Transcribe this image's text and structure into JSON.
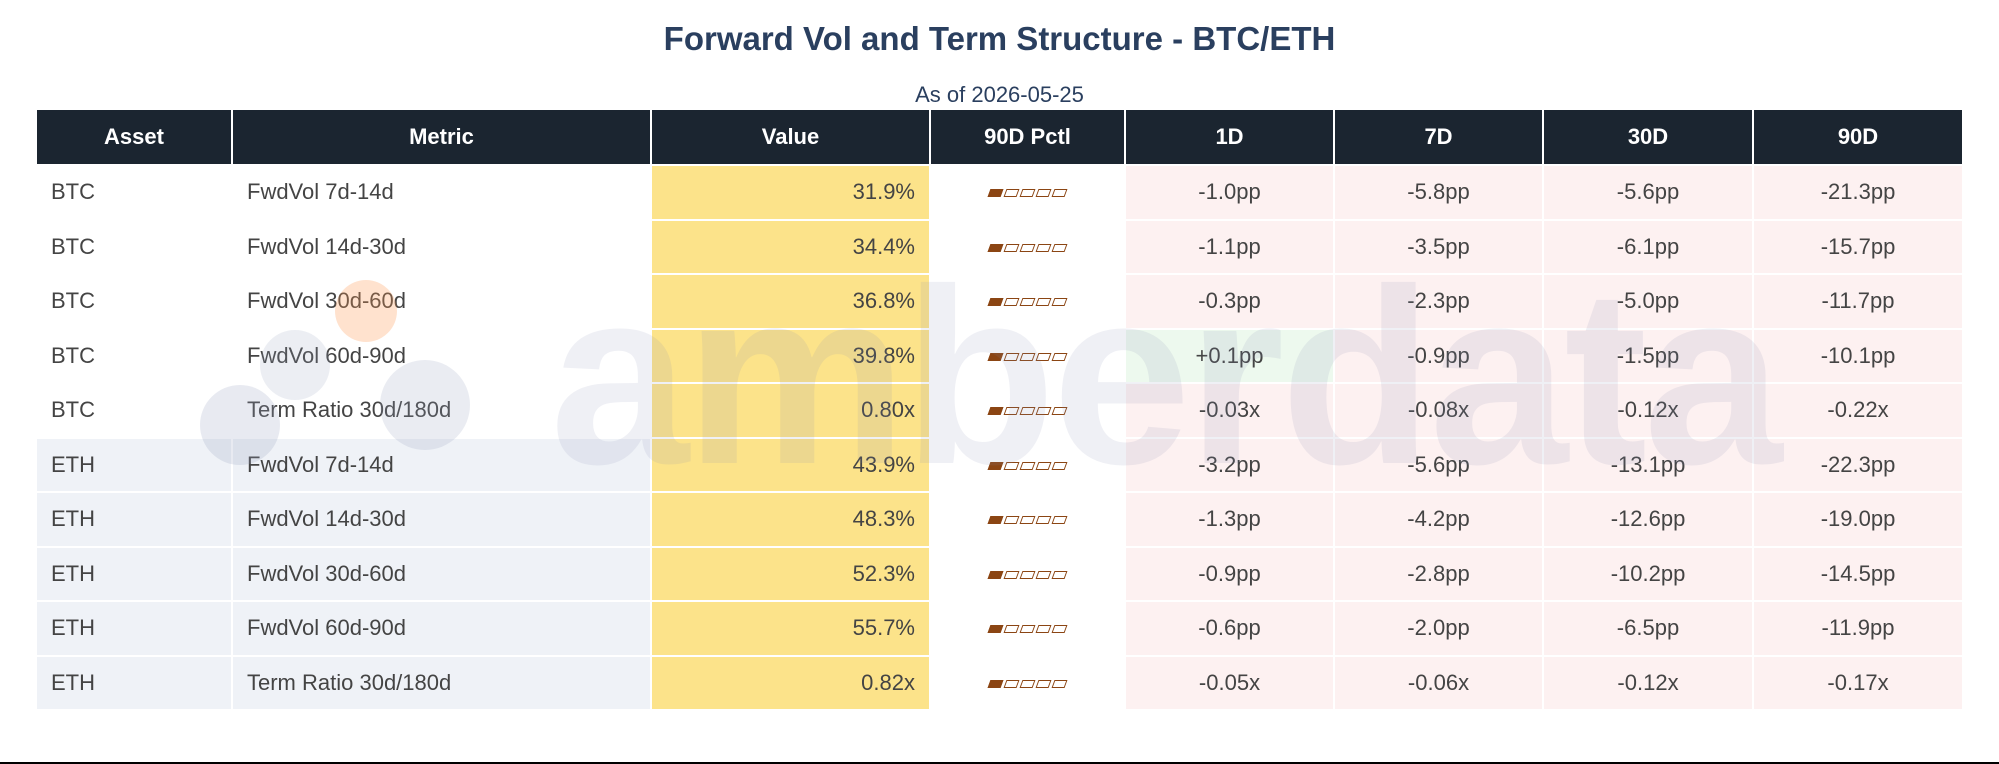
{
  "title": "Forward Vol and Term Structure - BTC/ETH",
  "subtitle": "As of 2026-05-25",
  "watermark": "amberdata",
  "colors": {
    "header_bg": "#1b2530",
    "value_highlight": "#fce38a",
    "negative": "#c62828",
    "positive": "#2e7d32",
    "percentile_bar": "#8b4513"
  },
  "chart_data": {
    "type": "table",
    "title": "Forward Vol and Term Structure - BTC/ETH",
    "subtitle": "As of 2026-05-25",
    "columns": [
      "Asset",
      "Metric",
      "Value",
      "90D Pctl",
      "1D",
      "7D",
      "30D",
      "90D"
    ],
    "rows": [
      {
        "asset": "BTC",
        "metric": "FwdVol 7d-14d",
        "value": "31.9%",
        "pctl_segments": 1,
        "d1": "-1.0pp",
        "d7": "-5.8pp",
        "d30": "-5.6pp",
        "d90": "-21.3pp"
      },
      {
        "asset": "BTC",
        "metric": "FwdVol 14d-30d",
        "value": "34.4%",
        "pctl_segments": 1,
        "d1": "-1.1pp",
        "d7": "-3.5pp",
        "d30": "-6.1pp",
        "d90": "-15.7pp"
      },
      {
        "asset": "BTC",
        "metric": "FwdVol 30d-60d",
        "value": "36.8%",
        "pctl_segments": 1,
        "d1": "-0.3pp",
        "d7": "-2.3pp",
        "d30": "-5.0pp",
        "d90": "-11.7pp"
      },
      {
        "asset": "BTC",
        "metric": "FwdVol 60d-90d",
        "value": "39.8%",
        "pctl_segments": 1,
        "d1": "+0.1pp",
        "d7": "-0.9pp",
        "d30": "-1.5pp",
        "d90": "-10.1pp"
      },
      {
        "asset": "BTC",
        "metric": "Term Ratio 30d/180d",
        "value": "0.80x",
        "pctl_segments": 1,
        "d1": "-0.03x",
        "d7": "-0.08x",
        "d30": "-0.12x",
        "d90": "-0.22x"
      },
      {
        "asset": "ETH",
        "metric": "FwdVol 7d-14d",
        "value": "43.9%",
        "pctl_segments": 1,
        "d1": "-3.2pp",
        "d7": "-5.6pp",
        "d30": "-13.1pp",
        "d90": "-22.3pp"
      },
      {
        "asset": "ETH",
        "metric": "FwdVol 14d-30d",
        "value": "48.3%",
        "pctl_segments": 1,
        "d1": "-1.3pp",
        "d7": "-4.2pp",
        "d30": "-12.6pp",
        "d90": "-19.0pp"
      },
      {
        "asset": "ETH",
        "metric": "FwdVol 30d-60d",
        "value": "52.3%",
        "pctl_segments": 1,
        "d1": "-0.9pp",
        "d7": "-2.8pp",
        "d30": "-10.2pp",
        "d90": "-14.5pp"
      },
      {
        "asset": "ETH",
        "metric": "FwdVol 60d-90d",
        "value": "55.7%",
        "pctl_segments": 1,
        "d1": "-0.6pp",
        "d7": "-2.0pp",
        "d30": "-6.5pp",
        "d90": "-11.9pp"
      },
      {
        "asset": "ETH",
        "metric": "Term Ratio 30d/180d",
        "value": "0.82x",
        "pctl_segments": 1,
        "d1": "-0.05x",
        "d7": "-0.06x",
        "d30": "-0.12x",
        "d90": "-0.17x"
      }
    ]
  }
}
